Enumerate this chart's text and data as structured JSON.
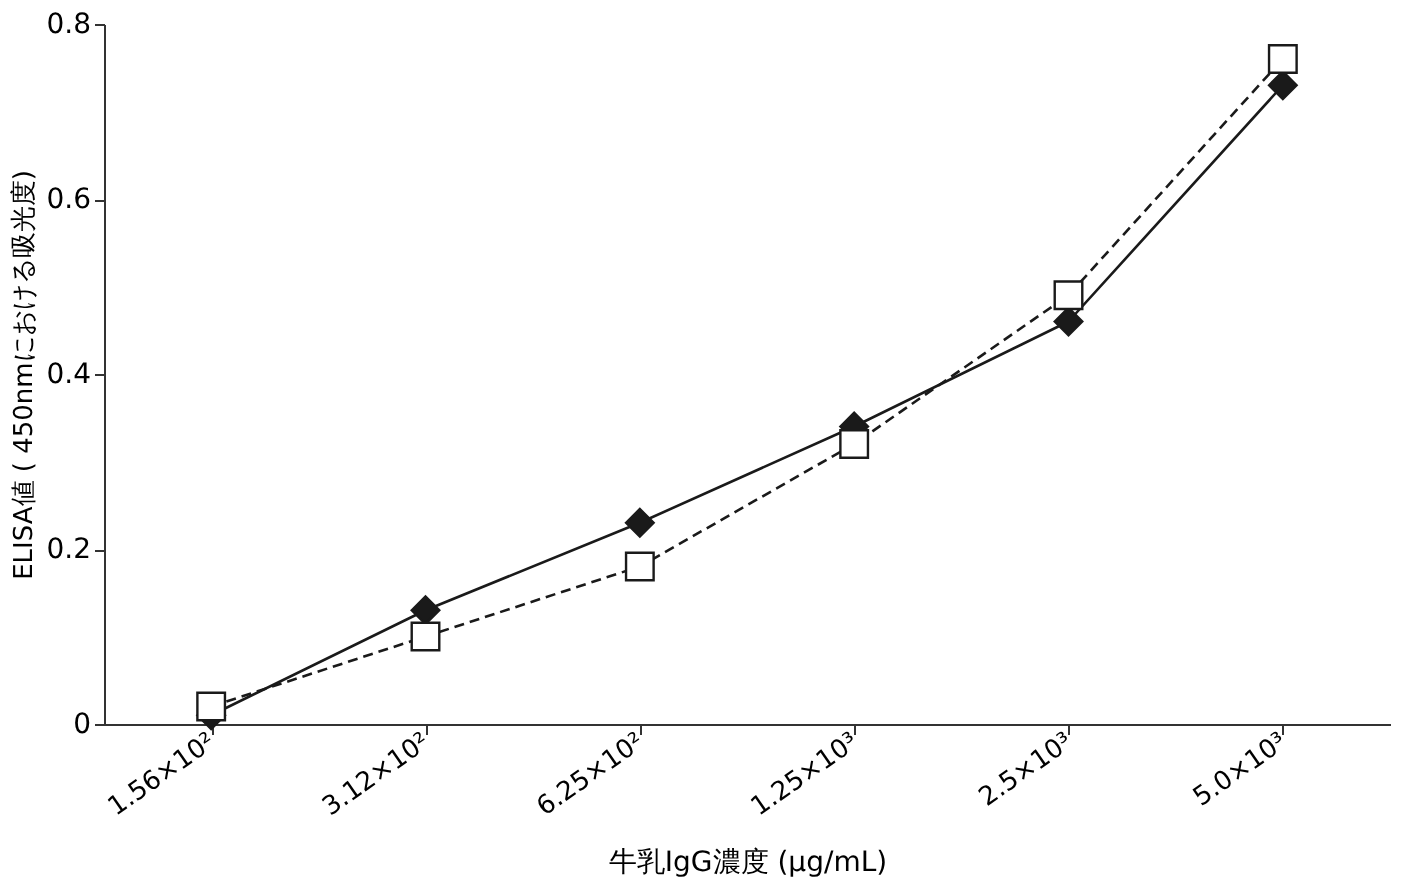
{
  "chart_data": {
    "type": "line",
    "xlabel": "牛乳IgG濃度 (μg/mL)",
    "ylabel": "ELISA値 ( 450nmにおける吸光度)",
    "categories": [
      "1.56×10²",
      "3.12×10²",
      "6.25×10²",
      "1.25×10³",
      "2.5×10³",
      "5.0×10³"
    ],
    "series": [
      {
        "color": "#1a1a1a",
        "marker": "diamond",
        "line_style": "solid",
        "values": [
          0.01,
          0.13,
          0.23,
          0.34,
          0.46,
          0.73
        ]
      },
      {
        "color": "#1a1a1a",
        "marker": "square",
        "line_style": "dashed",
        "values": [
          0.02,
          0.1,
          0.18,
          0.32,
          0.49,
          0.76
        ]
      }
    ],
    "ylim": [
      0,
      0.8
    ],
    "yticks": [
      0,
      0.2,
      0.4,
      0.6,
      0.8
    ],
    "grid": false
  }
}
